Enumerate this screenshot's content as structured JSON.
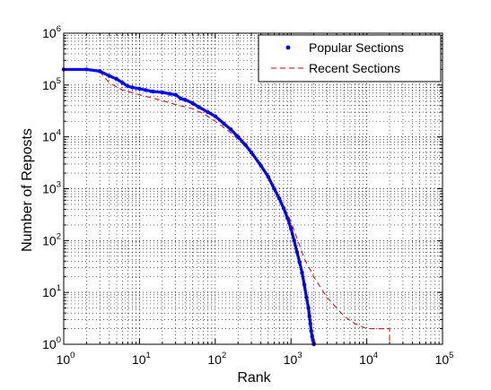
{
  "chart_data": {
    "type": "line",
    "title": "",
    "xlabel": "Rank",
    "ylabel": "Number of Reposts",
    "xscale": "log",
    "yscale": "log",
    "xlim": [
      1,
      100000
    ],
    "ylim": [
      1,
      1000000
    ],
    "grid": true,
    "legend_position": "top-right",
    "x_ticks": [
      {
        "value": 1,
        "base": "10",
        "exp": "0"
      },
      {
        "value": 10,
        "base": "10",
        "exp": "1"
      },
      {
        "value": 100,
        "base": "10",
        "exp": "2"
      },
      {
        "value": 1000,
        "base": "10",
        "exp": "3"
      },
      {
        "value": 10000,
        "base": "10",
        "exp": "4"
      },
      {
        "value": 100000,
        "base": "10",
        "exp": "5"
      }
    ],
    "y_ticks": [
      {
        "value": 1,
        "base": "10",
        "exp": "0"
      },
      {
        "value": 10,
        "base": "10",
        "exp": "1"
      },
      {
        "value": 100,
        "base": "10",
        "exp": "2"
      },
      {
        "value": 1000,
        "base": "10",
        "exp": "3"
      },
      {
        "value": 10000,
        "base": "10",
        "exp": "4"
      },
      {
        "value": 100000,
        "base": "10",
        "exp": "5"
      },
      {
        "value": 1000000,
        "base": "10",
        "exp": "6"
      }
    ],
    "series": [
      {
        "name": "Popular Sections",
        "style": "markers",
        "color": "#0000ff",
        "x": [
          1,
          2,
          3,
          4,
          5,
          6,
          7,
          8,
          10,
          12,
          15,
          20,
          25,
          30,
          35,
          40,
          50,
          60,
          80,
          100,
          130,
          160,
          200,
          250,
          300,
          400,
          500,
          600,
          700,
          800,
          900,
          1000,
          1100,
          1200,
          1300,
          1400,
          1500,
          1600,
          1700,
          1750,
          1800,
          1850,
          1900,
          1950,
          2000,
          2000
        ],
        "y": [
          200000,
          200000,
          185000,
          150000,
          130000,
          110000,
          95000,
          90000,
          85000,
          80000,
          75000,
          72000,
          68000,
          65000,
          55000,
          52000,
          45000,
          38000,
          30000,
          25000,
          18000,
          14000,
          10000,
          7000,
          5000,
          2800,
          1700,
          1000,
          650,
          420,
          270,
          170,
          100,
          60,
          38,
          24,
          14,
          8,
          5,
          3.5,
          2.5,
          1.8,
          1.4,
          1.2,
          1.05,
          1
        ]
      },
      {
        "name": "Recent Sections",
        "style": "dashed",
        "color": "#cc0000",
        "x": [
          1,
          2,
          3,
          4,
          6,
          10,
          20,
          30,
          50,
          70,
          100,
          150,
          200,
          300,
          400,
          500,
          700,
          1000,
          1500,
          2000,
          2500,
          3000,
          4000,
          5000,
          7000,
          10000,
          15000,
          20000,
          20000
        ],
        "y": [
          200000,
          200000,
          180000,
          110000,
          80000,
          65000,
          50000,
          42000,
          35000,
          28000,
          20000,
          13000,
          9000,
          5000,
          3000,
          1800,
          700,
          230,
          45,
          20,
          12,
          8,
          5,
          3.5,
          2.5,
          2,
          2,
          2,
          1
        ]
      }
    ]
  }
}
